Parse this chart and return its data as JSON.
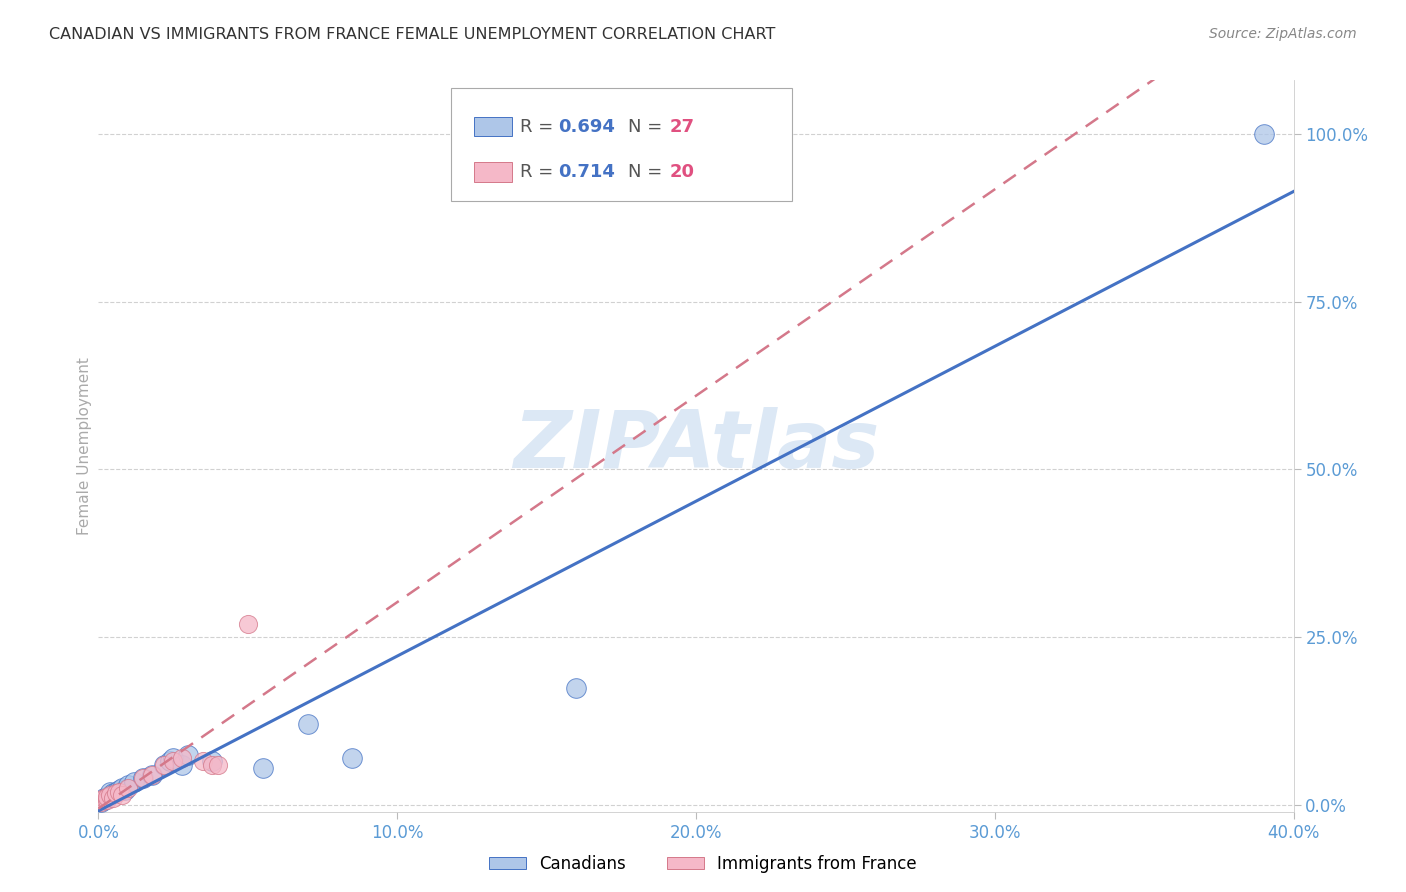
{
  "title": "CANADIAN VS IMMIGRANTS FROM FRANCE FEMALE UNEMPLOYMENT CORRELATION CHART",
  "source": "Source: ZipAtlas.com",
  "ylabel": "Female Unemployment",
  "R1": 0.694,
  "N1": 27,
  "R2": 0.714,
  "N2": 20,
  "color1": "#aec6e8",
  "color2": "#f5b8c8",
  "line_color1": "#4472c4",
  "line_color2": "#d4788a",
  "xlim": [
    0.0,
    0.4
  ],
  "ylim": [
    -0.01,
    1.08
  ],
  "xticks": [
    0.0,
    0.1,
    0.2,
    0.3,
    0.4
  ],
  "yticks": [
    0.0,
    0.25,
    0.5,
    0.75,
    1.0
  ],
  "canadian_x": [
    0.001,
    0.002,
    0.002,
    0.003,
    0.003,
    0.004,
    0.004,
    0.005,
    0.006,
    0.007,
    0.008,
    0.009,
    0.01,
    0.012,
    0.015,
    0.018,
    0.022,
    0.024,
    0.025,
    0.028,
    0.03,
    0.038,
    0.055,
    0.07,
    0.085,
    0.16,
    0.39
  ],
  "canadian_y": [
    0.005,
    0.008,
    0.01,
    0.01,
    0.012,
    0.015,
    0.02,
    0.018,
    0.02,
    0.022,
    0.025,
    0.022,
    0.03,
    0.035,
    0.04,
    0.045,
    0.06,
    0.065,
    0.07,
    0.06,
    0.075,
    0.065,
    0.055,
    0.12,
    0.07,
    0.175,
    1.0
  ],
  "france_x": [
    0.001,
    0.001,
    0.002,
    0.003,
    0.003,
    0.004,
    0.005,
    0.006,
    0.007,
    0.008,
    0.01,
    0.015,
    0.018,
    0.022,
    0.025,
    0.028,
    0.035,
    0.038,
    0.04,
    0.05
  ],
  "france_y": [
    0.005,
    0.008,
    0.01,
    0.008,
    0.012,
    0.015,
    0.01,
    0.018,
    0.02,
    0.015,
    0.025,
    0.04,
    0.045,
    0.06,
    0.065,
    0.07,
    0.065,
    0.06,
    0.06,
    0.27
  ],
  "background_color": "#ffffff",
  "grid_color": "#cccccc",
  "title_color": "#333333",
  "tick_label_color": "#5b9bd5",
  "watermark_color": "#dce8f5",
  "legend_label1": "Canadians",
  "legend_label2": "Immigrants from France"
}
